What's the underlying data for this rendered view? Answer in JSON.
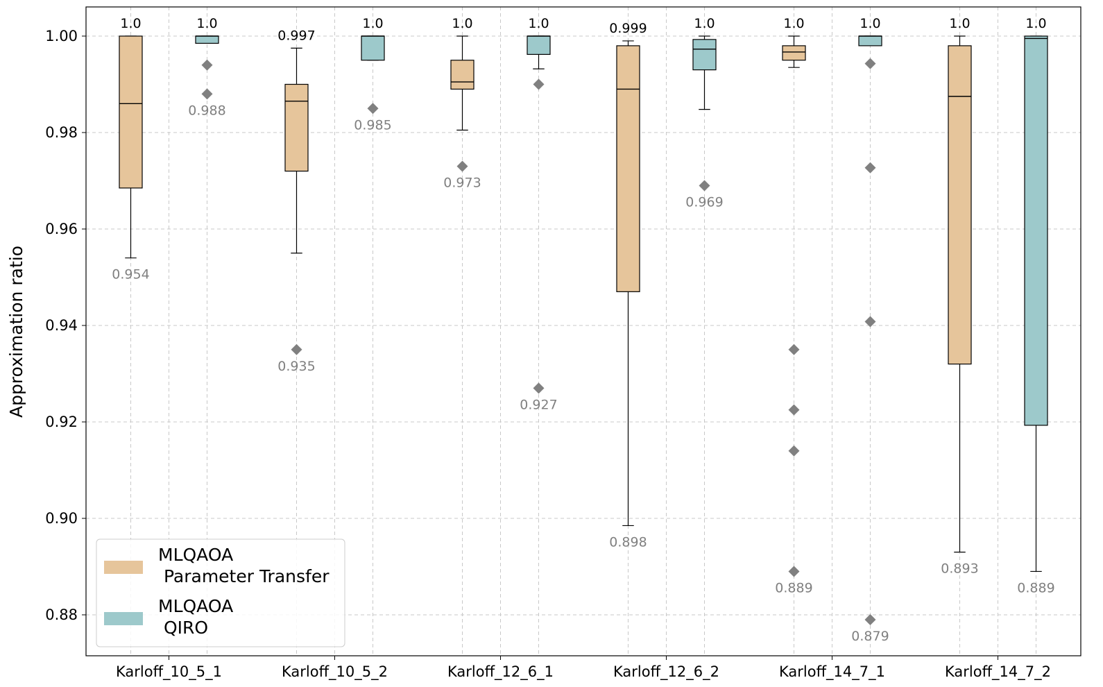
{
  "chart_data": {
    "type": "box",
    "title": "",
    "xlabel": "",
    "ylabel": "Approximation ratio",
    "ylim": [
      0.8735,
      1.006
    ],
    "yticks": [
      0.88,
      0.9,
      0.92,
      0.94,
      0.96,
      0.98,
      1.0
    ],
    "ytick_labels": [
      "0.88",
      "0.90",
      "0.92",
      "0.94",
      "0.96",
      "0.98",
      "1.00"
    ],
    "grid": true,
    "legend_position": "lower-left",
    "categories": [
      "Karloff_10_5_1",
      "Karloff_10_5_2",
      "Karloff_12_6_1",
      "Karloff_12_6_2",
      "Karloff_14_7_1",
      "Karloff_14_7_2"
    ],
    "colors": {
      "MLQAOA Parameter Transfer": "#e6c59b",
      "MLQAOA QIRO": "#9dc9cb",
      "outlier": "#808080",
      "grid": "#c8c8c8"
    },
    "series": [
      {
        "name": "MLQAOA Parameter Transfer",
        "legend_lines": [
          "MLQAOA",
          " Parameter Transfer"
        ],
        "boxes": [
          {
            "whisker_low": 0.954,
            "q1": 0.9685,
            "median": 0.986,
            "q3": 1.0,
            "whisker_high": 1.0,
            "outliers": [],
            "max_label": "1.0",
            "min_label": "0.954"
          },
          {
            "whisker_low": 0.955,
            "q1": 0.972,
            "median": 0.9865,
            "q3": 0.99,
            "whisker_high": 0.9975,
            "outliers": [
              0.935
            ],
            "max_label": "0.997",
            "min_label": "0.935"
          },
          {
            "whisker_low": 0.9805,
            "q1": 0.989,
            "median": 0.9905,
            "q3": 0.995,
            "whisker_high": 1.0,
            "outliers": [
              0.973
            ],
            "max_label": "1.0",
            "min_label": "0.973"
          },
          {
            "whisker_low": 0.8985,
            "q1": 0.947,
            "median": 0.989,
            "q3": 0.998,
            "whisker_high": 0.999,
            "outliers": [],
            "max_label": "0.999",
            "min_label": "0.898"
          },
          {
            "whisker_low": 0.9935,
            "q1": 0.995,
            "median": 0.9967,
            "q3": 0.998,
            "whisker_high": 1.0,
            "outliers": [
              0.935,
              0.9225,
              0.914,
              0.889
            ],
            "max_label": "1.0",
            "min_label": "0.889"
          },
          {
            "whisker_low": 0.893,
            "q1": 0.932,
            "median": 0.9875,
            "q3": 0.998,
            "whisker_high": 1.0,
            "outliers": [],
            "max_label": "1.0",
            "min_label": "0.893"
          }
        ]
      },
      {
        "name": "MLQAOA QIRO",
        "legend_lines": [
          "MLQAOA",
          " QIRO"
        ],
        "boxes": [
          {
            "whisker_low": 0.9985,
            "q1": 0.9985,
            "median": 1.0,
            "q3": 1.0,
            "whisker_high": 1.0,
            "outliers": [
              0.994,
              0.988
            ],
            "max_label": "1.0",
            "min_label": "0.988"
          },
          {
            "whisker_low": 0.995,
            "q1": 0.995,
            "median": 1.0,
            "q3": 1.0,
            "whisker_high": 1.0,
            "outliers": [
              0.985
            ],
            "max_label": "1.0",
            "min_label": "0.985"
          },
          {
            "whisker_low": 0.9932,
            "q1": 0.9962,
            "median": 1.0,
            "q3": 1.0,
            "whisker_high": 1.0,
            "outliers": [
              0.99,
              0.927
            ],
            "max_label": "1.0",
            "min_label": "0.927"
          },
          {
            "whisker_low": 0.9848,
            "q1": 0.993,
            "median": 0.9973,
            "q3": 0.9993,
            "whisker_high": 1.0,
            "outliers": [
              0.969
            ],
            "max_label": "1.0",
            "min_label": "0.969"
          },
          {
            "whisker_low": 0.998,
            "q1": 0.998,
            "median": 1.0,
            "q3": 1.0,
            "whisker_high": 1.0,
            "outliers": [
              0.9943,
              0.9727,
              0.9408,
              0.879
            ],
            "max_label": "1.0",
            "min_label": "0.879"
          },
          {
            "whisker_low": 0.889,
            "q1": 0.9193,
            "median": 0.9995,
            "q3": 1.0,
            "whisker_high": 1.0,
            "outliers": [],
            "max_label": "1.0",
            "min_label": "0.889"
          }
        ]
      }
    ]
  }
}
